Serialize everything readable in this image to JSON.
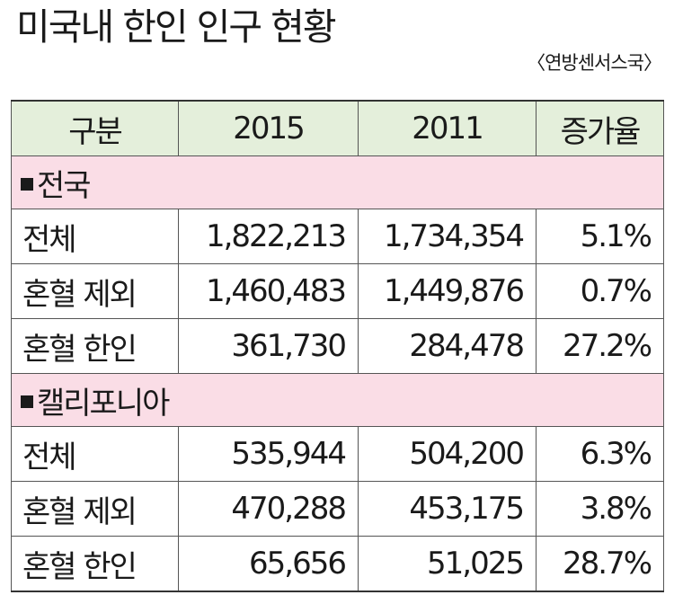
{
  "title": "미국내 한인 인구 현황",
  "source": "〈연방센서스국〉",
  "table": {
    "headers": [
      "구분",
      "2015",
      "2011",
      "증가율"
    ],
    "sections": [
      {
        "name": "전국",
        "rows": [
          {
            "label": "전체",
            "y2015": "1,822,213",
            "y2011": "1,734,354",
            "rate": "5.1%"
          },
          {
            "label": "혼혈 제외",
            "y2015": "1,460,483",
            "y2011": "1,449,876",
            "rate": "0.7%"
          },
          {
            "label": "혼혈 한인",
            "y2015": "361,730",
            "y2011": "284,478",
            "rate": "27.2%"
          }
        ]
      },
      {
        "name": "캘리포니아",
        "rows": [
          {
            "label": "전체",
            "y2015": "535,944",
            "y2011": "504,200",
            "rate": "6.3%"
          },
          {
            "label": "혼혈 제외",
            "y2015": "470,288",
            "y2011": "453,175",
            "rate": "3.8%"
          },
          {
            "label": "혼혈 한인",
            "y2015": "65,656",
            "y2011": "51,025",
            "rate": "28.7%"
          }
        ]
      }
    ]
  },
  "colors": {
    "header_bg": "#e4efdb",
    "section_bg": "#fadde6",
    "border": "#555555"
  }
}
